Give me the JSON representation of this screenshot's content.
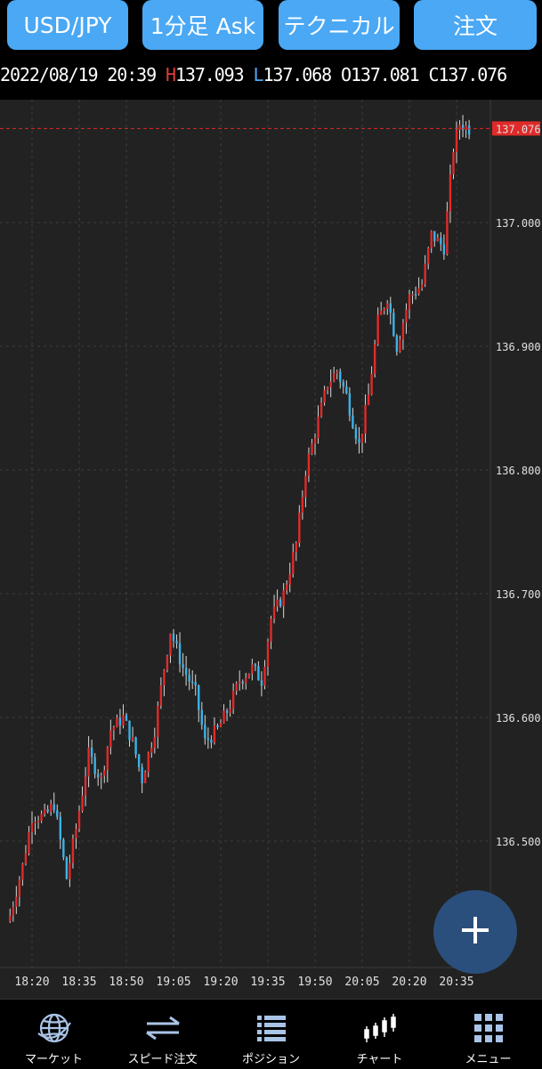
{
  "toolbar": {
    "pair_label": "USD/JPY",
    "timeframe_label": "1分足 Ask",
    "technical_label": "テクニカル",
    "order_label": "注文"
  },
  "ohlc": {
    "datetime": "2022/08/19 20:39",
    "high_prefix": "H",
    "high": "137.093",
    "low_prefix": "L",
    "low": "137.068",
    "open_prefix": "O",
    "open": "137.081",
    "close_prefix": "C",
    "close": "137.076"
  },
  "colors": {
    "up": "#e02a2a",
    "down": "#3bb3e8",
    "background": "#222222",
    "grid": "#3c3c3c",
    "accent": "#4aa8f4",
    "current_price_line": "#e02a2a"
  },
  "chart_data": {
    "type": "candlestick",
    "symbol": "USD/JPY",
    "interval": "1分足",
    "price_axis_ticks": [
      "136.500",
      "136.600",
      "136.700",
      "136.800",
      "136.900",
      "137.000"
    ],
    "time_axis_ticks": [
      "18:20",
      "18:35",
      "18:50",
      "19:05",
      "19:20",
      "19:35",
      "19:50",
      "20:05",
      "20:20",
      "20:35"
    ],
    "ylim": [
      136.42,
      137.13
    ],
    "current_price": "137.076",
    "close_path": [
      [
        "18:13",
        136.44
      ],
      [
        "18:17",
        136.48
      ],
      [
        "18:20",
        136.52
      ],
      [
        "18:24",
        136.52
      ],
      [
        "18:27",
        136.53
      ],
      [
        "18:31",
        136.47
      ],
      [
        "18:34",
        136.51
      ],
      [
        "18:38",
        136.57
      ],
      [
        "18:42",
        136.55
      ],
      [
        "18:45",
        136.59
      ],
      [
        "18:49",
        136.6
      ],
      [
        "18:52",
        136.58
      ],
      [
        "18:55",
        136.55
      ],
      [
        "18:59",
        136.59
      ],
      [
        "19:02",
        136.64
      ],
      [
        "19:04",
        136.67
      ],
      [
        "19:08",
        136.64
      ],
      [
        "19:12",
        136.62
      ],
      [
        "19:15",
        136.58
      ],
      [
        "19:19",
        136.59
      ],
      [
        "19:23",
        136.61
      ],
      [
        "19:26",
        136.63
      ],
      [
        "19:30",
        136.64
      ],
      [
        "19:33",
        136.63
      ],
      [
        "19:36",
        136.68
      ],
      [
        "19:40",
        136.7
      ],
      [
        "19:44",
        136.74
      ],
      [
        "19:47",
        136.8
      ],
      [
        "19:50",
        136.83
      ],
      [
        "19:54",
        136.87
      ],
      [
        "19:57",
        136.88
      ],
      [
        "20:00",
        136.86
      ],
      [
        "20:04",
        136.82
      ],
      [
        "20:07",
        136.86
      ],
      [
        "20:10",
        136.92
      ],
      [
        "20:13",
        136.94
      ],
      [
        "20:16",
        136.9
      ],
      [
        "20:20",
        136.94
      ],
      [
        "20:24",
        136.95
      ],
      [
        "20:27",
        136.99
      ],
      [
        "20:31",
        136.98
      ],
      [
        "20:34",
        137.06
      ],
      [
        "20:36",
        137.08
      ],
      [
        "20:39",
        137.076
      ]
    ],
    "grid": true
  },
  "fab": {
    "icon": "plus-icon"
  },
  "nav": {
    "market": {
      "label": "マーケット",
      "icon": "globe-icon"
    },
    "speed_order": {
      "label": "スピード注文",
      "icon": "swap-arrows-icon"
    },
    "positions": {
      "label": "ポジション",
      "icon": "list-icon"
    },
    "chart": {
      "label": "チャート",
      "icon": "candlestick-icon"
    },
    "menu": {
      "label": "メニュー",
      "icon": "grid-icon"
    }
  }
}
